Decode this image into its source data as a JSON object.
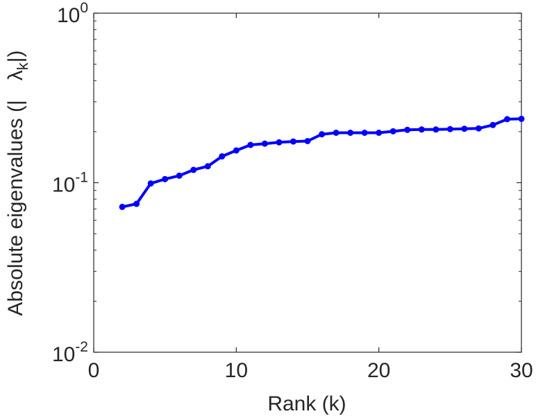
{
  "chart_data": {
    "type": "line",
    "title": "",
    "xlabel": "Rank (k)",
    "ylabel": {
      "text": "Absolute eigenvalues (|",
      "symbol": "λ",
      "subscript": "k",
      "close": "|)"
    },
    "y_scale": "log",
    "xlim": [
      0,
      30
    ],
    "ylim": [
      0.01,
      1
    ],
    "grid": false,
    "legend": "none",
    "x_ticks": [
      {
        "value": 0,
        "label": "0"
      },
      {
        "value": 10,
        "label": "10"
      },
      {
        "value": 20,
        "label": "20"
      },
      {
        "value": 30,
        "label": "30"
      }
    ],
    "y_ticks": [
      {
        "value": 0.01,
        "base": "10",
        "exponent": "-2"
      },
      {
        "value": 0.1,
        "base": "10",
        "exponent": "-1"
      },
      {
        "value": 1,
        "base": "10",
        "exponent": "0"
      }
    ],
    "series": [
      {
        "color": "#0000ff",
        "marker": "filled-circle",
        "x": [
          2,
          3,
          4,
          5,
          6,
          7,
          8,
          9,
          10,
          11,
          12,
          13,
          14,
          15,
          16,
          17,
          18,
          19,
          20,
          21,
          22,
          23,
          24,
          25,
          26,
          27,
          28,
          29,
          30
        ],
        "y": [
          0.072,
          0.075,
          0.099,
          0.105,
          0.11,
          0.119,
          0.125,
          0.143,
          0.155,
          0.167,
          0.17,
          0.173,
          0.175,
          0.176,
          0.193,
          0.197,
          0.197,
          0.197,
          0.197,
          0.201,
          0.205,
          0.206,
          0.206,
          0.207,
          0.208,
          0.209,
          0.219,
          0.237,
          0.238
        ]
      }
    ]
  }
}
